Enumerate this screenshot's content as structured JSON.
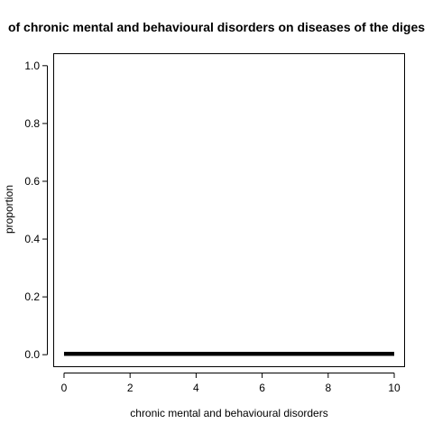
{
  "chart_data": {
    "type": "line",
    "title": "of chronic mental and behavioural disorders on diseases of the diges",
    "xlabel": "chronic mental and behavioural disorders",
    "ylabel": "proportion",
    "xlim": [
      -0.3,
      10.3
    ],
    "ylim": [
      -0.04,
      1.04
    ],
    "x_ticks": [
      0,
      2,
      4,
      6,
      8,
      10
    ],
    "x_tick_labels": [
      "0",
      "2",
      "4",
      "6",
      "8",
      "10"
    ],
    "y_ticks": [
      0.0,
      0.2,
      0.4,
      0.6,
      0.8,
      1.0
    ],
    "y_tick_labels": [
      "0.0",
      "0.2",
      "0.4",
      "0.6",
      "0.8",
      "1.0"
    ],
    "grid": false,
    "series": [
      {
        "color": "#000000",
        "x": [
          0,
          10
        ],
        "y": [
          0.003,
          0.003
        ]
      }
    ]
  }
}
